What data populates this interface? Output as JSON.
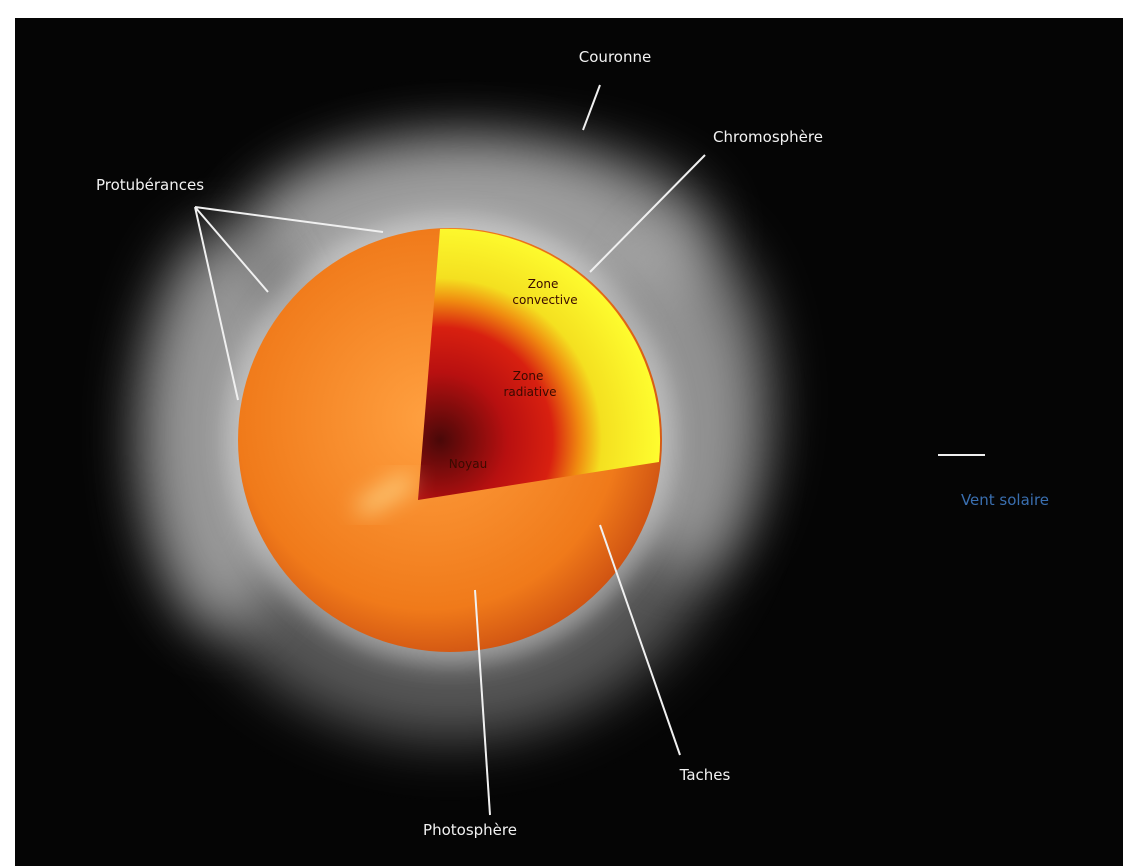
{
  "labels": {
    "couronne": "Couronne",
    "chromosphere": "Chromosphère",
    "protuberances": "Protubérances",
    "zone_convective": [
      "Zone",
      "convective"
    ],
    "zone_radiative": [
      "Zone",
      "radiative"
    ],
    "noyau": "Noyau",
    "vent_solaire": "Vent solaire",
    "taches": "Taches",
    "photosphere": "Photosphère"
  }
}
